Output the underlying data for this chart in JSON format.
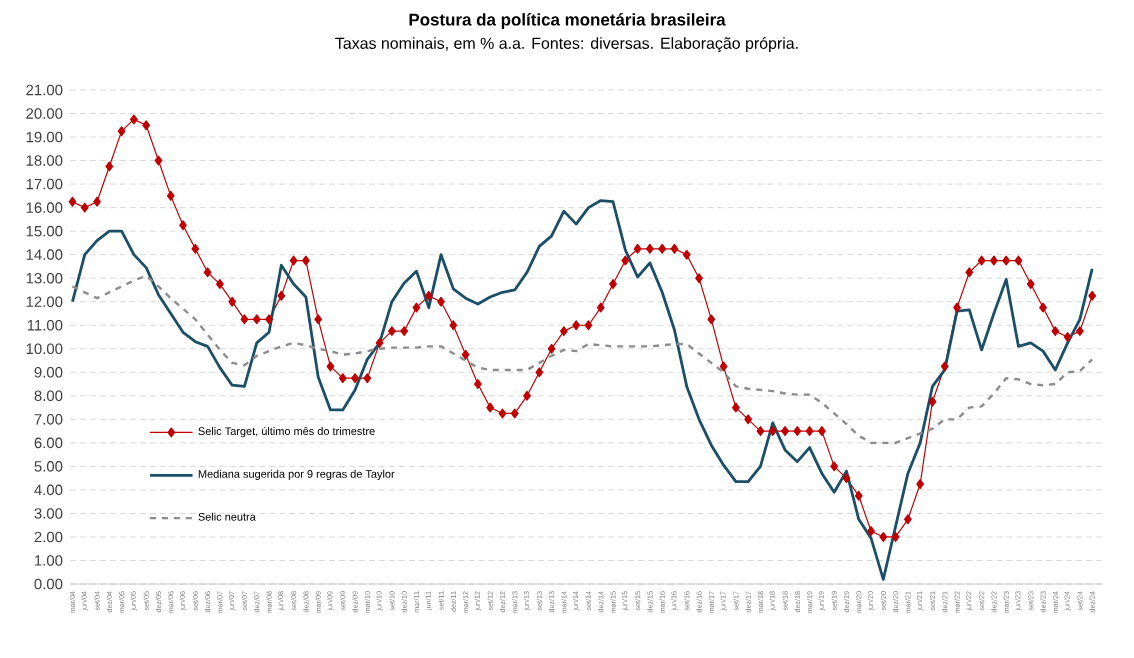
{
  "chart_data": {
    "type": "line",
    "title": "Postura da política monetária brasileira",
    "subtitle": "Taxas nominais, em % a.a. Fontes: diversas. Elaboração própria.",
    "categories": [
      "mar/04",
      "jun/04",
      "set/04",
      "dez/04",
      "mar/05",
      "jun/05",
      "set/05",
      "dez/05",
      "mar/06",
      "jun/06",
      "set/06",
      "dez/06",
      "mar/07",
      "jun/07",
      "set/07",
      "dez/07",
      "mar/08",
      "jun/08",
      "set/08",
      "dez/08",
      "mar/09",
      "jun/09",
      "set/09",
      "dez/09",
      "mar/10",
      "jun/10",
      "set/10",
      "dez/10",
      "mar/11",
      "jun/11",
      "set/11",
      "dez/11",
      "mar/12",
      "jun/12",
      "set/12",
      "dez/12",
      "mar/13",
      "jun/13",
      "set/13",
      "dez/13",
      "mar/14",
      "jun/14",
      "set/14",
      "dez/14",
      "mar/15",
      "jun/15",
      "set/15",
      "dez/15",
      "mar/16",
      "jun/16",
      "set/16",
      "dez/16",
      "mar/17",
      "jun/17",
      "set/17",
      "dez/17",
      "mar/18",
      "jun/18",
      "set/18",
      "dez/18",
      "mar/19",
      "jun/19",
      "set/19",
      "dez/19",
      "mar/20",
      "jun/20",
      "set/20",
      "dez/20",
      "mar/21",
      "jun/21",
      "set/21",
      "dez/21",
      "mar/22",
      "jun/22",
      "set/22",
      "dez/22",
      "mar/23",
      "jun/23",
      "set/23",
      "dez/23",
      "mar/24",
      "jun/24",
      "set/24",
      "dez/24"
    ],
    "series": [
      {
        "name": "Selic Target, último mês do trimestre",
        "color": "#c00000",
        "marker": "diamond",
        "line_style": "solid",
        "values": [
          16.25,
          16.0,
          16.25,
          17.75,
          19.25,
          19.75,
          19.5,
          18.0,
          16.5,
          15.25,
          14.25,
          13.25,
          12.75,
          12.0,
          11.25,
          11.25,
          11.25,
          12.25,
          13.75,
          13.75,
          11.25,
          9.25,
          8.75,
          8.75,
          8.75,
          10.25,
          10.75,
          10.75,
          11.75,
          12.25,
          12.0,
          11.0,
          9.75,
          8.5,
          7.5,
          7.25,
          7.25,
          8.0,
          9.0,
          10.0,
          10.75,
          11.0,
          11.0,
          11.75,
          12.75,
          13.75,
          14.25,
          14.25,
          14.25,
          14.25,
          14.0,
          13.0,
          11.25,
          9.25,
          7.5,
          7.0,
          6.5,
          6.5,
          6.5,
          6.5,
          6.5,
          6.5,
          5.0,
          4.5,
          3.75,
          2.25,
          2.0,
          2.0,
          2.75,
          4.25,
          7.75,
          9.25,
          11.75,
          13.25,
          13.75,
          13.75,
          13.75,
          13.75,
          12.75,
          11.75,
          10.75,
          10.5,
          10.75,
          12.25
        ]
      },
      {
        "name": "Mediana sugerida por 9 regras de Taylor",
        "color": "#1b4f68",
        "marker": "none",
        "line_style": "solid",
        "values": [
          12.0,
          14.0,
          14.6,
          15.0,
          15.0,
          14.0,
          13.45,
          12.3,
          11.5,
          10.7,
          10.3,
          10.1,
          9.2,
          8.45,
          8.4,
          10.25,
          10.7,
          13.55,
          12.75,
          12.2,
          8.8,
          7.4,
          7.4,
          8.25,
          9.55,
          10.25,
          12.0,
          12.8,
          13.3,
          11.75,
          14.0,
          12.55,
          12.15,
          11.9,
          12.2,
          12.4,
          12.5,
          13.25,
          14.35,
          14.8,
          15.85,
          15.3,
          16.0,
          16.3,
          16.25,
          14.2,
          13.05,
          13.65,
          12.4,
          10.8,
          8.4,
          7.0,
          5.9,
          5.05,
          4.35,
          4.35,
          5.0,
          6.85,
          5.7,
          5.2,
          5.8,
          4.7,
          3.9,
          4.8,
          2.75,
          1.95,
          0.2,
          2.45,
          4.7,
          6.0,
          8.4,
          9.1,
          11.6,
          11.65,
          9.95,
          11.5,
          12.95,
          10.1,
          10.25,
          9.9,
          9.1,
          10.25,
          11.25,
          13.4
        ]
      },
      {
        "name": "Selic neutra",
        "color": "#8c8c8c",
        "marker": "none",
        "line_style": "dashed",
        "values": [
          12.65,
          12.4,
          12.15,
          12.4,
          12.65,
          12.9,
          13.1,
          12.65,
          12.15,
          11.7,
          11.25,
          10.6,
          9.95,
          9.4,
          9.3,
          9.7,
          9.9,
          10.1,
          10.25,
          10.15,
          10.0,
          9.9,
          9.75,
          9.8,
          9.9,
          10.0,
          10.05,
          10.05,
          10.05,
          10.1,
          10.1,
          9.8,
          9.5,
          9.2,
          9.1,
          9.1,
          9.1,
          9.1,
          9.4,
          9.7,
          9.95,
          9.9,
          10.2,
          10.15,
          10.1,
          10.1,
          10.1,
          10.1,
          10.15,
          10.2,
          10.2,
          9.8,
          9.4,
          9.0,
          8.4,
          8.3,
          8.25,
          8.2,
          8.1,
          8.05,
          8.05,
          7.7,
          7.25,
          6.8,
          6.3,
          6.0,
          6.0,
          6.0,
          6.2,
          6.4,
          6.6,
          7.0,
          7.0,
          7.5,
          7.55,
          8.1,
          8.75,
          8.7,
          8.5,
          8.45,
          8.5,
          9.0,
          9.05,
          9.55
        ]
      }
    ],
    "ylim": [
      0,
      21
    ],
    "yticks": [
      {
        "value": 0,
        "label": "0.00"
      },
      {
        "value": 1,
        "label": "1.00"
      },
      {
        "value": 2,
        "label": "2.00"
      },
      {
        "value": 3,
        "label": "3.00"
      },
      {
        "value": 4,
        "label": "4.00"
      },
      {
        "value": 5,
        "label": "5.00"
      },
      {
        "value": 6,
        "label": "6.00"
      },
      {
        "value": 7,
        "label": "7.00"
      },
      {
        "value": 8,
        "label": "8.00"
      },
      {
        "value": 9,
        "label": "9.00"
      },
      {
        "value": 10,
        "label": "10.00"
      },
      {
        "value": 11,
        "label": "11.00"
      },
      {
        "value": 12,
        "label": "12.00"
      },
      {
        "value": 13,
        "label": "13.00"
      },
      {
        "value": 14,
        "label": "14.00"
      },
      {
        "value": 15,
        "label": "15.00"
      },
      {
        "value": 16,
        "label": "16.00"
      },
      {
        "value": 17,
        "label": "17.00"
      },
      {
        "value": 18,
        "label": "18.00"
      },
      {
        "value": 19,
        "label": "19.00"
      },
      {
        "value": 20,
        "label": "20.00"
      },
      {
        "value": 21,
        "label": "21.00"
      }
    ],
    "grid": "y",
    "legend": "left"
  }
}
